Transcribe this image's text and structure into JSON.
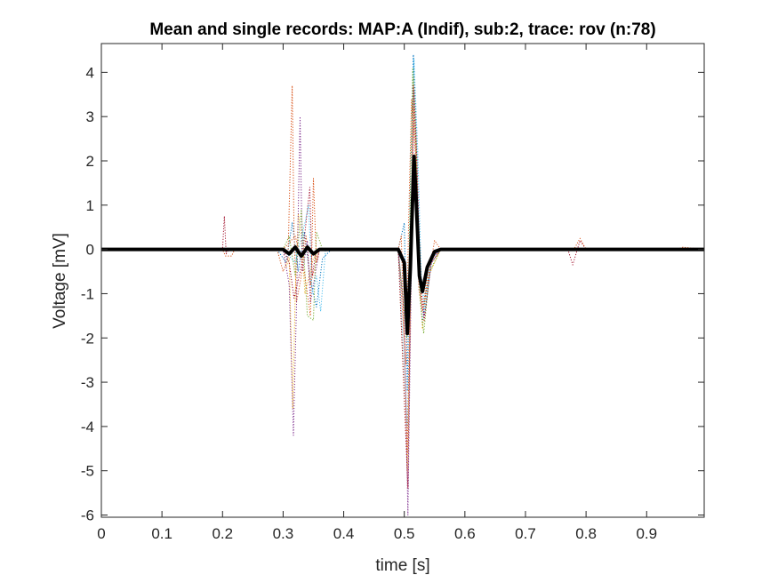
{
  "chart_data": {
    "type": "line",
    "title": "Mean and single records: MAP:A (Indif), sub:2, trace: rov (n:78)",
    "xlabel": "time [s]",
    "ylabel": "Voltage [mV]",
    "xlim": [
      0,
      0.995
    ],
    "ylim": [
      -6.05,
      4.65
    ],
    "x_ticks": [
      0,
      0.1,
      0.2,
      0.3,
      0.4,
      0.5,
      0.6,
      0.7,
      0.8,
      0.9
    ],
    "x_tick_labels": [
      "0",
      "0.1",
      "0.2",
      "0.3",
      "0.4",
      "0.5",
      "0.6",
      "0.7",
      "0.8",
      "0.9"
    ],
    "y_ticks": [
      -6,
      -5,
      -4,
      -3,
      -2,
      -1,
      0,
      1,
      2,
      3,
      4
    ],
    "y_tick_labels": [
      "-6",
      "-5",
      "-4",
      "-3",
      "-2",
      "-1",
      "0",
      "1",
      "2",
      "3",
      "4"
    ],
    "grid": false,
    "legend": "none",
    "series": [
      {
        "style": "dotted",
        "color": "#0072BD",
        "points": [
          [
            0,
            0
          ],
          [
            0.29,
            0
          ],
          [
            0.305,
            -0.3
          ],
          [
            0.315,
            0.6
          ],
          [
            0.325,
            -0.5
          ],
          [
            0.335,
            0.4
          ],
          [
            0.345,
            -0.7
          ],
          [
            0.355,
            -1.3
          ],
          [
            0.365,
            -0.2
          ],
          [
            0.38,
            0
          ],
          [
            0.49,
            0
          ],
          [
            0.5,
            0.6
          ],
          [
            0.505,
            -3.2
          ],
          [
            0.51,
            1.5
          ],
          [
            0.515,
            4.4
          ],
          [
            0.52,
            2.6
          ],
          [
            0.525,
            -0.8
          ],
          [
            0.53,
            -1.7
          ],
          [
            0.535,
            -1.0
          ],
          [
            0.545,
            -0.3
          ],
          [
            0.56,
            0
          ],
          [
            0.995,
            0
          ]
        ]
      },
      {
        "style": "dotted",
        "color": "#D95319",
        "points": [
          [
            0,
            0
          ],
          [
            0.29,
            0
          ],
          [
            0.3,
            -0.5
          ],
          [
            0.308,
            -0.2
          ],
          [
            0.315,
            3.7
          ],
          [
            0.318,
            0.4
          ],
          [
            0.322,
            -1.2
          ],
          [
            0.33,
            -0.6
          ],
          [
            0.338,
            0.3
          ],
          [
            0.345,
            -0.8
          ],
          [
            0.36,
            0
          ],
          [
            0.49,
            0
          ],
          [
            0.503,
            -2.6
          ],
          [
            0.507,
            0.5
          ],
          [
            0.512,
            3.4
          ],
          [
            0.518,
            2.2
          ],
          [
            0.524,
            -0.9
          ],
          [
            0.53,
            -1.4
          ],
          [
            0.54,
            -0.4
          ],
          [
            0.56,
            0
          ],
          [
            0.995,
            0
          ]
        ]
      },
      {
        "style": "dotted",
        "color": "#EDB120",
        "points": [
          [
            0,
            0
          ],
          [
            0.3,
            0
          ],
          [
            0.305,
            -0.4
          ],
          [
            0.31,
            -0.2
          ],
          [
            0.316,
            -3.6
          ],
          [
            0.32,
            -1.0
          ],
          [
            0.325,
            0.8
          ],
          [
            0.33,
            0.3
          ],
          [
            0.336,
            -1.0
          ],
          [
            0.35,
            -0.2
          ],
          [
            0.36,
            0
          ],
          [
            0.49,
            0
          ],
          [
            0.505,
            -5.0
          ],
          [
            0.51,
            -1.5
          ],
          [
            0.515,
            3.9
          ],
          [
            0.52,
            2.4
          ],
          [
            0.525,
            -0.7
          ],
          [
            0.53,
            -1.8
          ],
          [
            0.54,
            -0.6
          ],
          [
            0.56,
            0
          ],
          [
            0.995,
            0
          ]
        ]
      },
      {
        "style": "dotted",
        "color": "#7E2F8E",
        "points": [
          [
            0,
            0
          ],
          [
            0.3,
            0
          ],
          [
            0.31,
            -0.8
          ],
          [
            0.317,
            -4.2
          ],
          [
            0.322,
            -1.3
          ],
          [
            0.328,
            3.0
          ],
          [
            0.332,
            -0.5
          ],
          [
            0.34,
            0.2
          ],
          [
            0.345,
            -1.2
          ],
          [
            0.36,
            0
          ],
          [
            0.49,
            0
          ],
          [
            0.5,
            -1.5
          ],
          [
            0.506,
            -6.0
          ],
          [
            0.51,
            -2.0
          ],
          [
            0.516,
            3.6
          ],
          [
            0.521,
            2.0
          ],
          [
            0.527,
            -0.9
          ],
          [
            0.533,
            -1.5
          ],
          [
            0.545,
            -0.3
          ],
          [
            0.56,
            0
          ],
          [
            0.995,
            0
          ]
        ]
      },
      {
        "style": "dotted",
        "color": "#77AC30",
        "points": [
          [
            0,
            0
          ],
          [
            0.3,
            0
          ],
          [
            0.31,
            0.3
          ],
          [
            0.32,
            -0.6
          ],
          [
            0.33,
            0.9
          ],
          [
            0.34,
            -1.5
          ],
          [
            0.35,
            -1.6
          ],
          [
            0.355,
            0.4
          ],
          [
            0.365,
            0
          ],
          [
            0.49,
            0
          ],
          [
            0.504,
            -2.0
          ],
          [
            0.508,
            -0.2
          ],
          [
            0.514,
            4.1
          ],
          [
            0.52,
            2.1
          ],
          [
            0.526,
            -1.1
          ],
          [
            0.532,
            -1.9
          ],
          [
            0.542,
            -0.5
          ],
          [
            0.56,
            0
          ],
          [
            0.995,
            0
          ]
        ]
      },
      {
        "style": "dotted",
        "color": "#4DBEEE",
        "points": [
          [
            0,
            0
          ],
          [
            0.3,
            0
          ],
          [
            0.32,
            -0.3
          ],
          [
            0.336,
            0.6
          ],
          [
            0.342,
            1.0
          ],
          [
            0.348,
            -1.0
          ],
          [
            0.355,
            -0.6
          ],
          [
            0.362,
            -1.4
          ],
          [
            0.37,
            0
          ],
          [
            0.49,
            0
          ],
          [
            0.505,
            -4.0
          ],
          [
            0.51,
            -0.8
          ],
          [
            0.516,
            4.3
          ],
          [
            0.522,
            2.3
          ],
          [
            0.528,
            -0.6
          ],
          [
            0.534,
            -1.4
          ],
          [
            0.545,
            -0.2
          ],
          [
            0.56,
            0
          ],
          [
            0.995,
            0
          ]
        ]
      },
      {
        "style": "dotted",
        "color": "#A2142F",
        "points": [
          [
            0,
            0
          ],
          [
            0.2,
            0
          ],
          [
            0.203,
            0.75
          ],
          [
            0.206,
            -0.1
          ],
          [
            0.21,
            0
          ],
          [
            0.3,
            0
          ],
          [
            0.31,
            -0.3
          ],
          [
            0.318,
            -1.1
          ],
          [
            0.33,
            -0.4
          ],
          [
            0.344,
            1.4
          ],
          [
            0.348,
            -0.6
          ],
          [
            0.355,
            0
          ],
          [
            0.49,
            0
          ],
          [
            0.506,
            -5.4
          ],
          [
            0.51,
            -1.0
          ],
          [
            0.515,
            3.7
          ],
          [
            0.521,
            1.8
          ],
          [
            0.527,
            -1.0
          ],
          [
            0.533,
            -1.6
          ],
          [
            0.545,
            -0.2
          ],
          [
            0.56,
            0
          ],
          [
            0.77,
            0
          ],
          [
            0.778,
            -0.35
          ],
          [
            0.79,
            0.2
          ],
          [
            0.8,
            0
          ],
          [
            0.995,
            0
          ]
        ]
      },
      {
        "style": "dotted",
        "color": "#D95319",
        "points": [
          [
            0,
            0
          ],
          [
            0.2,
            0
          ],
          [
            0.205,
            -0.15
          ],
          [
            0.215,
            -0.15
          ],
          [
            0.22,
            0
          ],
          [
            0.3,
            0
          ],
          [
            0.32,
            0.3
          ],
          [
            0.335,
            -0.5
          ],
          [
            0.345,
            -1.5
          ],
          [
            0.35,
            1.6
          ],
          [
            0.355,
            -0.3
          ],
          [
            0.36,
            0
          ],
          [
            0.49,
            0
          ],
          [
            0.495,
            0.3
          ],
          [
            0.505,
            -4.6
          ],
          [
            0.51,
            -0.6
          ],
          [
            0.515,
            3.2
          ],
          [
            0.52,
            1.9
          ],
          [
            0.526,
            -0.8
          ],
          [
            0.532,
            -1.3
          ],
          [
            0.545,
            -0.2
          ],
          [
            0.55,
            0.2
          ],
          [
            0.56,
            0
          ],
          [
            0.78,
            0
          ],
          [
            0.79,
            0.25
          ],
          [
            0.8,
            0
          ],
          [
            0.95,
            0
          ],
          [
            0.96,
            0.05
          ],
          [
            0.995,
            0
          ]
        ]
      },
      {
        "style": "solid",
        "color": "#000000",
        "name": "",
        "points": [
          [
            0,
            0
          ],
          [
            0.3,
            0
          ],
          [
            0.31,
            -0.1
          ],
          [
            0.32,
            0.05
          ],
          [
            0.33,
            -0.15
          ],
          [
            0.34,
            0.05
          ],
          [
            0.35,
            -0.1
          ],
          [
            0.36,
            0
          ],
          [
            0.49,
            0
          ],
          [
            0.5,
            -0.3
          ],
          [
            0.505,
            -1.9
          ],
          [
            0.51,
            -0.4
          ],
          [
            0.516,
            2.1
          ],
          [
            0.52,
            1.0
          ],
          [
            0.525,
            -0.6
          ],
          [
            0.53,
            -0.95
          ],
          [
            0.538,
            -0.4
          ],
          [
            0.55,
            -0.05
          ],
          [
            0.56,
            0
          ],
          [
            0.995,
            0
          ]
        ]
      }
    ]
  }
}
